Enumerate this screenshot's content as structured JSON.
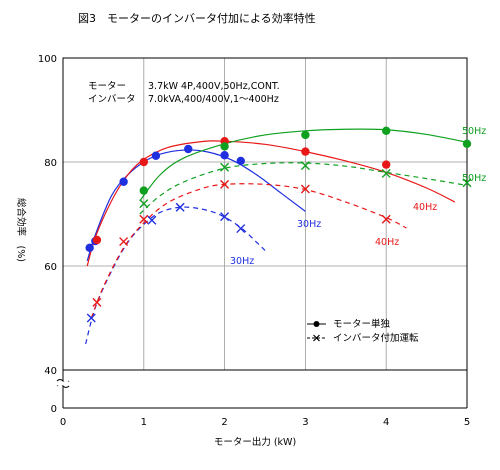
{
  "figure_title": "図3　モーターのインバータ付加による効率特性",
  "chart_data": {
    "type": "line",
    "xlabel": "モーター出力 (kW)",
    "ylabel": "総合効率　(%)",
    "xlim": [
      0,
      5
    ],
    "ylim": [
      40,
      100
    ],
    "y_axis_break": true,
    "x_ticks": [
      "0",
      "1",
      "2",
      "3",
      "4",
      "5"
    ],
    "y_ticks": [
      "0",
      "40",
      "60",
      "80",
      "100"
    ],
    "grid": true,
    "info": [
      {
        "label": "モーター",
        "value": "3.7kW 4P,400V,50Hz,CONT."
      },
      {
        "label": "インバータ",
        "value": "7.0kVA,400/400V,1～400Hz"
      }
    ],
    "legend": [
      {
        "marker": "dot",
        "line": "solid",
        "label": "モーター単独"
      },
      {
        "marker": "x",
        "line": "dashed",
        "label": "インバータ付加運転"
      }
    ],
    "series": [
      {
        "name": "30Hz",
        "color": "#1f2fe0",
        "style": "solid",
        "marker": "dot",
        "points": [
          [
            0.33,
            63.5
          ],
          [
            0.4,
            64.8
          ],
          [
            0.75,
            76.2
          ],
          [
            1.15,
            81.2
          ],
          [
            1.55,
            82.5
          ],
          [
            2.0,
            81.3
          ],
          [
            2.2,
            80.2
          ]
        ],
        "curve": [
          [
            0.3,
            61
          ],
          [
            0.4,
            66
          ],
          [
            0.6,
            73.5
          ],
          [
            0.8,
            77.5
          ],
          [
            1.0,
            80
          ],
          [
            1.2,
            81.5
          ],
          [
            1.5,
            82.3
          ],
          [
            1.8,
            81.9
          ],
          [
            2.1,
            80.3
          ],
          [
            2.4,
            77.5
          ],
          [
            2.7,
            74
          ],
          [
            3.0,
            70.5
          ]
        ]
      },
      {
        "name": "30Hz",
        "color": "#1f2fe0",
        "style": "dashed",
        "marker": "x",
        "points": [
          [
            0.35,
            50
          ],
          [
            1.1,
            68.8
          ],
          [
            1.45,
            71.3
          ],
          [
            2.0,
            69.5
          ],
          [
            2.2,
            67.2
          ]
        ],
        "curve": [
          [
            0.28,
            45
          ],
          [
            0.4,
            52
          ],
          [
            0.6,
            59
          ],
          [
            0.8,
            64.5
          ],
          [
            1.0,
            68
          ],
          [
            1.2,
            70.3
          ],
          [
            1.45,
            71.3
          ],
          [
            1.7,
            71.0
          ],
          [
            1.95,
            69.8
          ],
          [
            2.2,
            67.4
          ],
          [
            2.4,
            64.5
          ],
          [
            2.5,
            63
          ]
        ]
      },
      {
        "name": "40Hz",
        "color": "#e81818",
        "style": "solid",
        "marker": "dot",
        "points": [
          [
            0.42,
            65
          ],
          [
            1.0,
            80
          ],
          [
            2.0,
            84
          ],
          [
            3.0,
            82
          ],
          [
            4.0,
            79.5
          ]
        ],
        "curve": [
          [
            0.3,
            60
          ],
          [
            0.4,
            65.5
          ],
          [
            0.6,
            72.5
          ],
          [
            0.8,
            77.5
          ],
          [
            1.0,
            80.5
          ],
          [
            1.3,
            82.8
          ],
          [
            1.7,
            83.9
          ],
          [
            2.0,
            84.0
          ],
          [
            2.5,
            83.4
          ],
          [
            3.0,
            82.0
          ],
          [
            3.5,
            80.2
          ],
          [
            4.0,
            78.0
          ],
          [
            4.5,
            75
          ],
          [
            4.85,
            72.3
          ]
        ]
      },
      {
        "name": "40Hz",
        "color": "#e81818",
        "style": "dashed",
        "marker": "x",
        "points": [
          [
            0.42,
            53
          ],
          [
            0.75,
            64.7
          ],
          [
            1.0,
            69
          ],
          [
            2.0,
            75.7
          ],
          [
            3.0,
            74.8
          ],
          [
            4.0,
            69
          ]
        ],
        "curve": [
          [
            0.35,
            50
          ],
          [
            0.5,
            56
          ],
          [
            0.75,
            63.5
          ],
          [
            1.0,
            68.3
          ],
          [
            1.3,
            72.2
          ],
          [
            1.7,
            74.8
          ],
          [
            2.0,
            75.7
          ],
          [
            2.5,
            75.7
          ],
          [
            3.0,
            74.7
          ],
          [
            3.5,
            72.3
          ],
          [
            4.0,
            69.3
          ],
          [
            4.25,
            67.3
          ]
        ]
      },
      {
        "name": "50Hz",
        "color": "#10a020",
        "style": "solid",
        "marker": "dot",
        "points": [
          [
            1.0,
            74.5
          ],
          [
            2.0,
            83
          ],
          [
            3.0,
            85.2
          ],
          [
            4.0,
            86
          ],
          [
            5.0,
            83.5
          ]
        ],
        "curve": [
          [
            0.95,
            72.5
          ],
          [
            1.2,
            77.5
          ],
          [
            1.5,
            80.8
          ],
          [
            2.0,
            83.5
          ],
          [
            2.5,
            85.2
          ],
          [
            3.0,
            86.0
          ],
          [
            3.5,
            86.3
          ],
          [
            4.0,
            86.2
          ],
          [
            4.5,
            85.3
          ],
          [
            5.0,
            83.8
          ]
        ]
      },
      {
        "name": "50Hz",
        "color": "#10a020",
        "style": "dashed",
        "marker": "x",
        "points": [
          [
            1.0,
            72
          ],
          [
            2.0,
            79
          ],
          [
            3.0,
            79.3
          ],
          [
            4.0,
            77.8
          ],
          [
            5.0,
            76
          ]
        ],
        "curve": [
          [
            0.95,
            70
          ],
          [
            1.2,
            73.5
          ],
          [
            1.5,
            76.2
          ],
          [
            2.0,
            78.8
          ],
          [
            2.5,
            79.7
          ],
          [
            3.0,
            79.8
          ],
          [
            3.5,
            79.2
          ],
          [
            4.0,
            78.0
          ],
          [
            4.5,
            76.8
          ],
          [
            5.0,
            75.5
          ]
        ]
      }
    ],
    "series_labels": [
      "50Hz",
      "50Hz",
      "40Hz",
      "40Hz",
      "30Hz",
      "30Hz"
    ]
  }
}
